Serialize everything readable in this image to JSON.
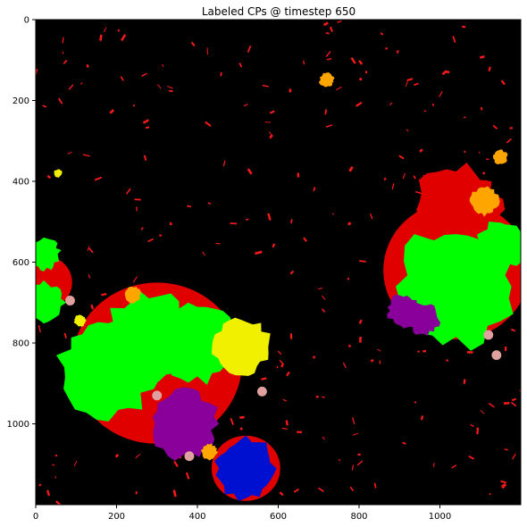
{
  "chart_data": {
    "type": "heatmap",
    "title": "Labeled CPs @ timestep 650",
    "xlabel": "",
    "ylabel": "",
    "xlim": [
      0,
      1200
    ],
    "ylim": [
      1200,
      0
    ],
    "x_ticks": [
      0,
      200,
      400,
      600,
      800,
      1000
    ],
    "y_ticks": [
      0,
      200,
      400,
      600,
      800,
      1000
    ],
    "grid": false,
    "background_color": "#000000",
    "colors": {
      "red": "#e00000",
      "bright_red": "#ff1a1a",
      "green": "#00ff00",
      "green_dark": "#00d800",
      "yellow": "#f0f000",
      "orange": "#ffa500",
      "purple": "#880099",
      "blue": "#0010d0",
      "pink": "#e0a0a0"
    },
    "regions": [
      {
        "label": "left-blob-green",
        "color": "green",
        "cx": 180,
        "cy": 860,
        "r": 120
      },
      {
        "label": "left-blob-green-2",
        "color": "green",
        "cx": 280,
        "cy": 790,
        "r": 115
      },
      {
        "label": "left-blob-green-3",
        "color": "green",
        "cx": 400,
        "cy": 800,
        "r": 95
      },
      {
        "label": "left-blob-yellow",
        "color": "yellow",
        "cx": 510,
        "cy": 810,
        "r": 70
      },
      {
        "label": "left-blob-purple",
        "color": "purple",
        "cx": 365,
        "cy": 1000,
        "r": 85
      },
      {
        "label": "left-blob-orange",
        "color": "orange",
        "cx": 240,
        "cy": 680,
        "r": 20
      },
      {
        "label": "left-blob-orange-2",
        "color": "orange",
        "cx": 430,
        "cy": 1070,
        "r": 20
      },
      {
        "label": "blue-blob",
        "color": "blue",
        "cx": 520,
        "cy": 1110,
        "r": 75
      },
      {
        "label": "right-blob-red",
        "color": "red",
        "cx": 1040,
        "cy": 470,
        "r": 110
      },
      {
        "label": "right-blob-green",
        "color": "green",
        "cx": 1040,
        "cy": 660,
        "r": 150
      },
      {
        "label": "right-blob-green-2",
        "color": "green",
        "cx": 1150,
        "cy": 560,
        "r": 60
      },
      {
        "label": "right-blob-purple",
        "color": "purple",
        "cx": 910,
        "cy": 720,
        "r": 40
      },
      {
        "label": "right-blob-purple-2",
        "color": "purple",
        "cx": 960,
        "cy": 740,
        "r": 40
      },
      {
        "label": "right-blob-orange",
        "color": "orange",
        "cx": 1110,
        "cy": 450,
        "r": 35
      },
      {
        "label": "far-left-green",
        "color": "green",
        "cx": 20,
        "cy": 700,
        "r": 50
      },
      {
        "label": "far-left-green-2",
        "color": "green",
        "cx": 20,
        "cy": 580,
        "r": 40
      },
      {
        "label": "far-left-yellow",
        "color": "yellow",
        "cx": 110,
        "cy": 745,
        "r": 15
      },
      {
        "label": "top-orange",
        "color": "orange",
        "cx": 720,
        "cy": 150,
        "r": 18
      },
      {
        "label": "top-right-orange",
        "color": "orange",
        "cx": 1150,
        "cy": 340,
        "r": 18
      },
      {
        "label": "small-yellow-left",
        "color": "yellow",
        "cx": 55,
        "cy": 380,
        "r": 10
      }
    ]
  }
}
